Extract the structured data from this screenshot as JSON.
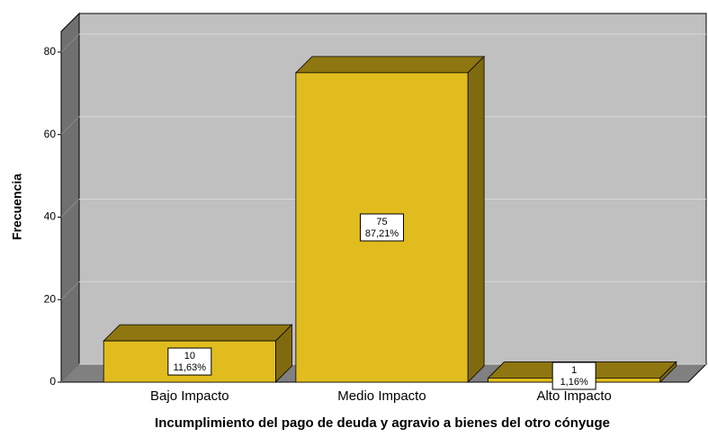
{
  "chart_data": {
    "type": "bar3d",
    "xlabel": "Incumplimiento del pago de deuda y agravio a bienes del otro cónyuge",
    "ylabel": "Frecuencia",
    "categories": [
      "Bajo Impacto",
      "Medio Impacto",
      "Alto Impacto"
    ],
    "values": [
      10,
      75,
      1
    ],
    "percent_labels": [
      "11,63%",
      "87,21%",
      "1,16%"
    ],
    "color": "#e1bc1e",
    "ylim": [
      0,
      85
    ],
    "yticks": [
      0,
      20,
      40,
      60,
      80
    ],
    "grid": true
  }
}
